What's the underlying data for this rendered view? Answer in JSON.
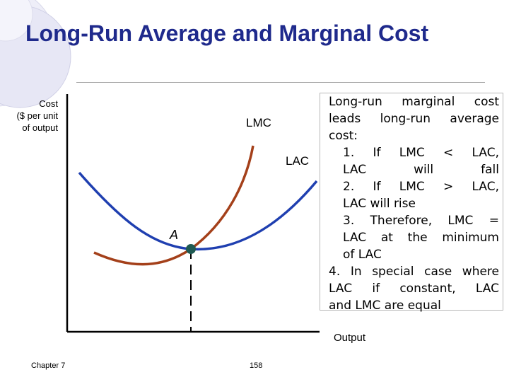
{
  "slide": {
    "title": "Long-Run Average and Marginal Cost",
    "footer_left": "Chapter 7",
    "page_number": "158"
  },
  "graph": {
    "y_axis_label": "Cost\n($ per unit\nof output",
    "x_axis_label": "Output",
    "lmc_label": "LMC",
    "lac_label": "LAC",
    "point_label": "A",
    "colors": {
      "lac_curve": "#1f3fb0",
      "lmc_curve": "#a4401a",
      "point": "#1f5a52",
      "axes": "#000000",
      "title": "#1f2a8c"
    }
  },
  "notes": {
    "line1": "Long-run marginal cost",
    "line2": "leads long-run average",
    "line3": "cost:",
    "line4": "1. If LMC < LAC,",
    "line5": "LAC will fall",
    "line6": "2. If LMC > LAC,",
    "line7": "LAC will rise",
    "line8": "3. Therefore, LMC =",
    "line9": "LAC at the minimum",
    "line10": "of LAC",
    "line11": "4. In special case where",
    "line12": "LAC if constant, LAC",
    "line13": "and LMC are equal"
  }
}
